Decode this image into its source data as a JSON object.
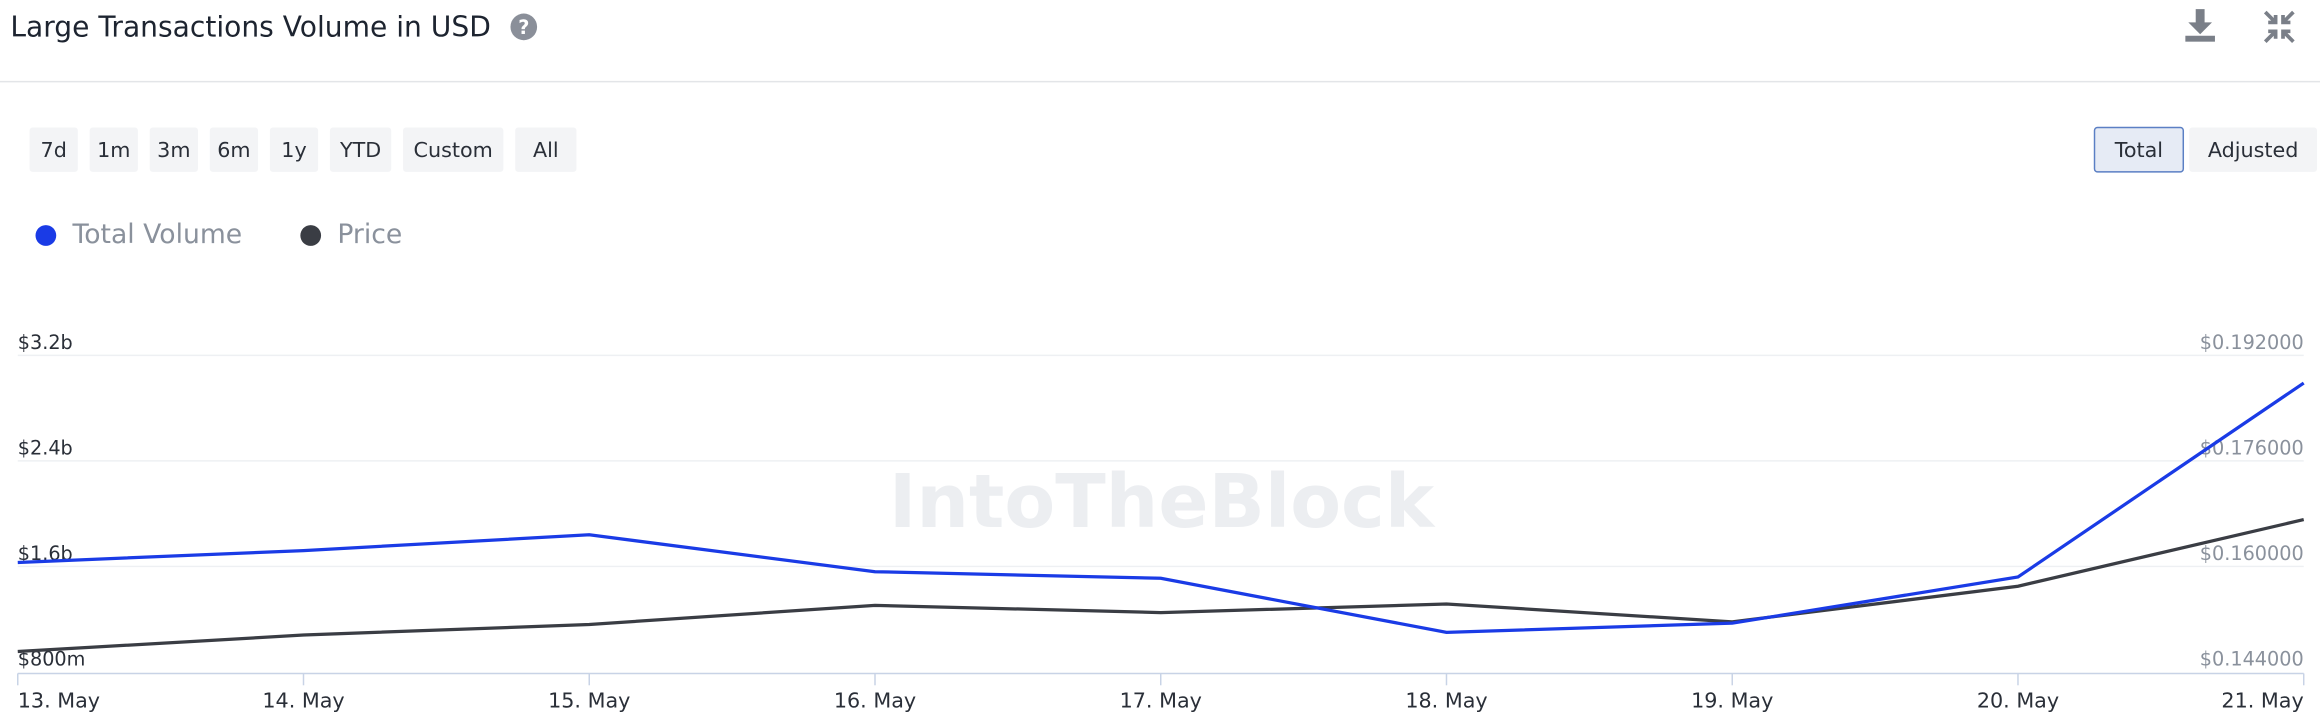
{
  "header": {
    "title": "Large Transactions Volume in USD"
  },
  "ranges": [
    "7d",
    "1m",
    "3m",
    "6m",
    "1y",
    "YTD",
    "Custom",
    "All"
  ],
  "modes": [
    "Total",
    "Adjusted"
  ],
  "active_mode": "Total",
  "watermark": "IntoTheBlock",
  "chart_data": {
    "type": "line",
    "categories": [
      "13. May",
      "14. May",
      "15. May",
      "16. May",
      "17. May",
      "18. May",
      "19. May",
      "20. May",
      "21. May"
    ],
    "series": [
      {
        "name": "Total Volume",
        "color": "#1a3be6",
        "values": [
          1630000000,
          1720000000,
          1840000000,
          1560000000,
          1510000000,
          1100000000,
          1170000000,
          1520000000,
          2990000000
        ]
      },
      {
        "name": "Price",
        "color": "#3a3d44",
        "axis": "y2",
        "values": [
          0.1471,
          0.1496,
          0.1512,
          0.1541,
          0.153,
          0.1543,
          0.1516,
          0.157,
          0.1671
        ]
      }
    ],
    "ylim": [
      800000000,
      3200000000
    ],
    "yticks": [
      {
        "value": 800000000,
        "label": "$800m"
      },
      {
        "value": 1600000000,
        "label": "$1.6b"
      },
      {
        "value": 2400000000,
        "label": "$2.4b"
      },
      {
        "value": 3200000000,
        "label": "$3.2b"
      }
    ],
    "y2lim": [
      0.144,
      0.192
    ],
    "y2ticks": [
      {
        "value": 0.144,
        "label": "$0.144000"
      },
      {
        "value": 0.16,
        "label": "$0.160000"
      },
      {
        "value": 0.176,
        "label": "$0.176000"
      },
      {
        "value": 0.192,
        "label": "$0.192000"
      }
    ],
    "grid": true,
    "legend": "top-left"
  }
}
